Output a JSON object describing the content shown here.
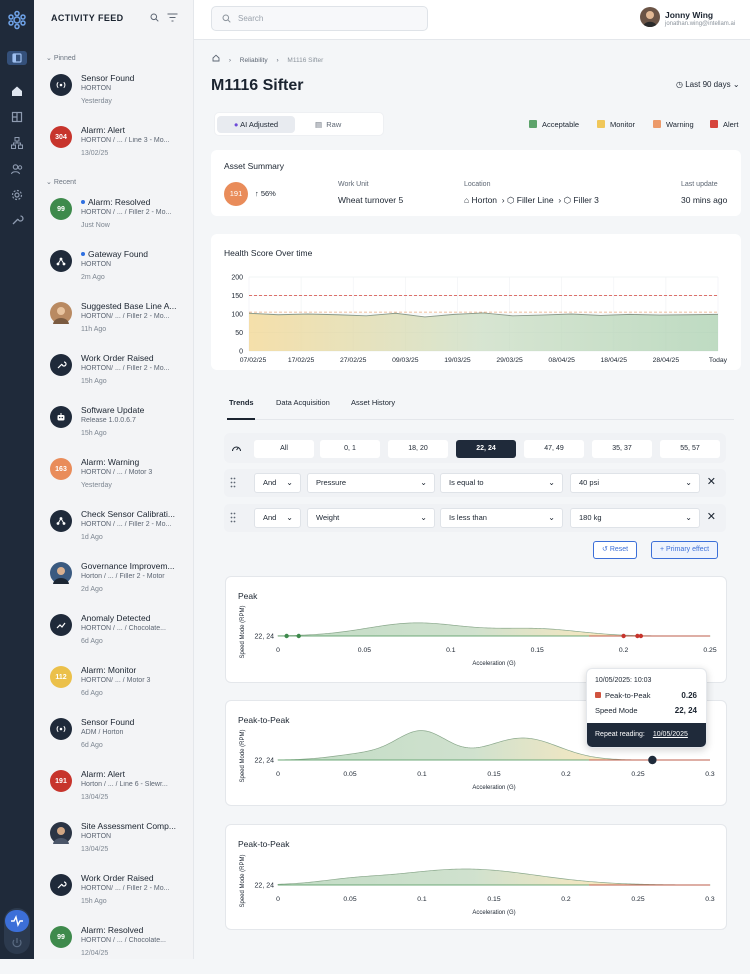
{
  "feed": {
    "title": "ACTIVITY FEED",
    "pinned_label": "Pinned",
    "recent_label": "Recent",
    "pinned": [
      {
        "avatar": "radio",
        "title": "Sensor Found",
        "sub": "HORTON",
        "time": "Yesterday"
      },
      {
        "avatar": "304",
        "title": "Alarm: Alert",
        "sub": "HORTON / ... / Line 3 - Mo...",
        "time": "13/02/25"
      }
    ],
    "recent": [
      {
        "avatar": "99",
        "title": "Alarm: Resolved",
        "sub": "HORTON / ... / Filler 2 - Mo...",
        "time": "Just Now",
        "unread": true
      },
      {
        "avatar": "gateway",
        "title": "Gateway Found",
        "sub": "HORTON",
        "time": "2m Ago",
        "unread": true
      },
      {
        "avatar": "photo",
        "title": "Suggested Base Line A...",
        "sub": "HORTON/ ... / Filler 2 - Mo...",
        "time": "11h Ago"
      },
      {
        "avatar": "wrench",
        "title": "Work Order Raised",
        "sub": "HORTON/ ... / Filler 2 - Mo...",
        "time": "15h Ago"
      },
      {
        "avatar": "robot",
        "title": "Software Update",
        "sub": "Release 1.0.0.6.7",
        "time": "15h Ago"
      },
      {
        "avatar": "163",
        "title": "Alarm: Warning",
        "sub": "HORTON / ... / Motor 3",
        "time": "Yesterday"
      },
      {
        "avatar": "share",
        "title": "Check Sensor Calibrati...",
        "sub": "HORTON / ... / Filler 2 - Mo...",
        "time": "1d Ago"
      },
      {
        "avatar": "photo2",
        "title": "Governance Improvem...",
        "sub": "Horton / ... / Filler 2 - Motor",
        "time": "2d Ago"
      },
      {
        "avatar": "trend",
        "title": "Anomaly Detected",
        "sub": "HORTON / ... / Chocolate...",
        "time": "6d Ago"
      },
      {
        "avatar": "112",
        "title": "Alarm: Monitor",
        "sub": "HORTON/ ... / Motor 3",
        "time": "6d Ago"
      },
      {
        "avatar": "radio",
        "title": "Sensor Found",
        "sub": "ADM / Horton",
        "time": "6d Ago"
      },
      {
        "avatar": "191",
        "title": "Alarm: Alert",
        "sub": "Horton / ... / Line 6 - Slewr...",
        "time": "13/04/25"
      },
      {
        "avatar": "photo3",
        "title": "Site Assessment Comp...",
        "sub": "HORTON",
        "time": "13/04/25"
      },
      {
        "avatar": "wrench",
        "title": "Work Order Raised",
        "sub": "HORTON/ ... / Filler 2 - Mo...",
        "time": "15h Ago"
      },
      {
        "avatar": "99",
        "title": "Alarm: Resolved",
        "sub": "HORTON / ... / Chocolate...",
        "time": "12/04/25"
      }
    ]
  },
  "topbar": {
    "search_placeholder": "Search",
    "user_name": "Jonny Wing",
    "user_email": "jonathan.wing@intellam.ai"
  },
  "breadcrumb": [
    "Reliability",
    "M1116 Sifter"
  ],
  "page_title": "M1116 Sifter",
  "range": "Last 90 days",
  "view_toggle": {
    "active": "AI Adjusted",
    "inactive": "Raw"
  },
  "legend": [
    {
      "label": "Acceptable",
      "color": "#5da36b"
    },
    {
      "label": "Monitor",
      "color": "#f0c75a"
    },
    {
      "label": "Warning",
      "color": "#ec9a6a"
    },
    {
      "label": "Alert",
      "color": "#d6443c"
    }
  ],
  "summary": {
    "title": "Asset Summary",
    "score": "191",
    "change": "56%",
    "work_unit_label": "Work Unit",
    "work_unit": "Wheat turnover 5",
    "location_label": "Location",
    "location": [
      "Horton",
      "Filler Line",
      "Filler 3"
    ],
    "update_label": "Last update",
    "update": "30 mins ago"
  },
  "health": {
    "title": "Health Score Over time",
    "y_ticks": [
      "200",
      "150",
      "100",
      "50",
      "0"
    ],
    "x_ticks": [
      "07/02/25",
      "17/02/25",
      "27/02/25",
      "09/03/25",
      "19/03/25",
      "29/03/25",
      "08/04/25",
      "18/04/25",
      "28/04/25",
      "Today"
    ]
  },
  "tabs": [
    "Trends",
    "Data Acquisition",
    "Asset History"
  ],
  "filters": {
    "buttons": [
      "All",
      "0, 1",
      "18, 20",
      "22, 24",
      "47, 49",
      "35, 37",
      "55, 57"
    ],
    "selected": "22, 24"
  },
  "conditions": [
    {
      "join": "And",
      "field": "Pressure",
      "op": "Is equal to",
      "value": "40 psi"
    },
    {
      "join": "And",
      "field": "Weight",
      "op": "Is less than",
      "value": "180 kg"
    }
  ],
  "actions": {
    "reset": "Reset",
    "primary": "Primary effect"
  },
  "charts": [
    {
      "title": "Peak",
      "ylabel": "Speed Mode (RPM)",
      "xlabel": "Acceleration (G)",
      "row": "22, 24",
      "x_ticks": [
        "0",
        "0.05",
        "0.1",
        "0.15",
        "0.2",
        "0.25"
      ]
    },
    {
      "title": "Peak-to-Peak",
      "ylabel": "Speed Mode (RPM)",
      "xlabel": "Acceleration (G)",
      "row": "22, 24",
      "x_ticks": [
        "0",
        "0.05",
        "0.1",
        "0.15",
        "0.2",
        "0.25",
        "0.3"
      ]
    },
    {
      "title": "Peak-to-Peak",
      "ylabel": "Speed Mode (RPM)",
      "xlabel": "Acceleration (G)",
      "row": "22, 24",
      "x_ticks": [
        "0",
        "0.05",
        "0.1",
        "0.15",
        "0.2",
        "0.25",
        "0.3"
      ]
    }
  ],
  "tooltip": {
    "date": "10/05/2025: 10:03",
    "metric_label": "Peak-to-Peak",
    "metric_value": "0.26",
    "mode_label": "Speed Mode",
    "mode_value": "22, 24",
    "repeat_label": "Repeat reading:",
    "repeat_date": "10/05/2025"
  }
}
